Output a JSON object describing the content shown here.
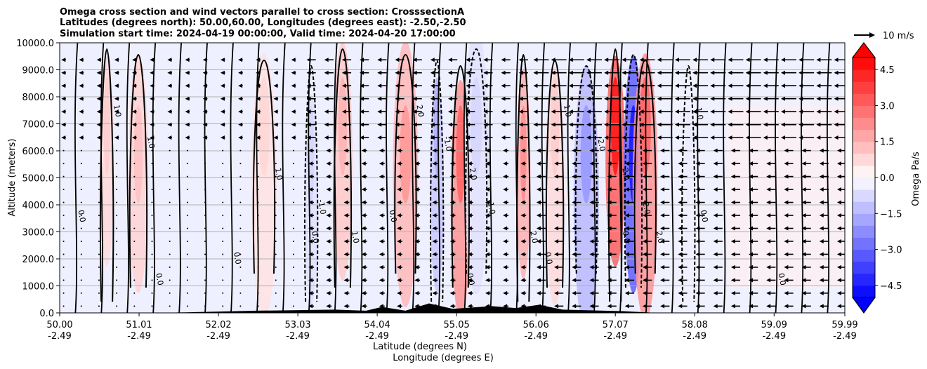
{
  "chart_data": {
    "type": "heatmap",
    "title_lines": [
      "Omega cross section and wind vectors parallel to cross section: CrosssectionA",
      "Latitudes (degrees north): 50.00,60.00, Longitudes (degrees east): -2.50,-2.50",
      "Simulation start time: 2024-04-19 00:00:00, Valid time: 2024-04-20 17:00:00"
    ],
    "xlabel_lines": [
      "Latitude (degrees N)",
      "Longitude (degrees E)"
    ],
    "ylabel": "Altitude (meters)",
    "ylim": [
      0,
      10000
    ],
    "xlim": [
      50.0,
      59.99
    ],
    "yticks": [
      "0.0",
      "1000.0",
      "2000.0",
      "3000.0",
      "4000.0",
      "5000.0",
      "6000.0",
      "7000.0",
      "8000.0",
      "9000.0",
      "10000.0"
    ],
    "xticks_lat": [
      "50.00",
      "51.01",
      "52.02",
      "53.03",
      "54.04",
      "55.05",
      "56.06",
      "57.07",
      "58.08",
      "59.09",
      "59.99"
    ],
    "xticks_lon": [
      "-2.49",
      "-2.49",
      "-2.49",
      "-2.49",
      "-2.49",
      "-2.49",
      "-2.49",
      "-2.49",
      "-2.49",
      "-2.49",
      "-2.49"
    ],
    "grid": "horizontal",
    "colorbar": {
      "label": "Omega Pa/s",
      "ticks": [
        "4.5",
        "3.0",
        "1.5",
        "0.0",
        "−1.5",
        "−3.0",
        "−4.5"
      ],
      "range": [
        -5.0,
        5.0
      ],
      "colormap": "bwr",
      "extend": "both"
    },
    "quiver_key": "10 m/s",
    "contour_levels_labeled": [
      "1.0",
      "0.0",
      "-1.0",
      "-2.0",
      "2.0"
    ],
    "features": [
      {
        "lat": 50.6,
        "omega": 1.0
      },
      {
        "lat": 51.0,
        "omega": 1.2
      },
      {
        "lat": 52.6,
        "omega": 0.8
      },
      {
        "lat": 53.2,
        "omega": -0.8
      },
      {
        "lat": 53.6,
        "omega": 1.5
      },
      {
        "lat": 54.4,
        "omega": 2.0
      },
      {
        "lat": 54.8,
        "omega": -1.5
      },
      {
        "lat": 55.1,
        "omega": 3.0
      },
      {
        "lat": 55.3,
        "omega": -0.8
      },
      {
        "lat": 55.9,
        "omega": 2.2
      },
      {
        "lat": 56.3,
        "omega": 1.0
      },
      {
        "lat": 56.7,
        "omega": -2.0
      },
      {
        "lat": 57.07,
        "omega": 4.5
      },
      {
        "lat": 57.3,
        "omega": -4.5
      },
      {
        "lat": 57.45,
        "omega": 3.0
      },
      {
        "lat": 58.0,
        "omega": -0.5
      }
    ],
    "colors": {
      "positive_max": "#ff0000",
      "negative_max": "#0000ff",
      "zero": "#ffffff",
      "terrain": "#000000"
    }
  }
}
